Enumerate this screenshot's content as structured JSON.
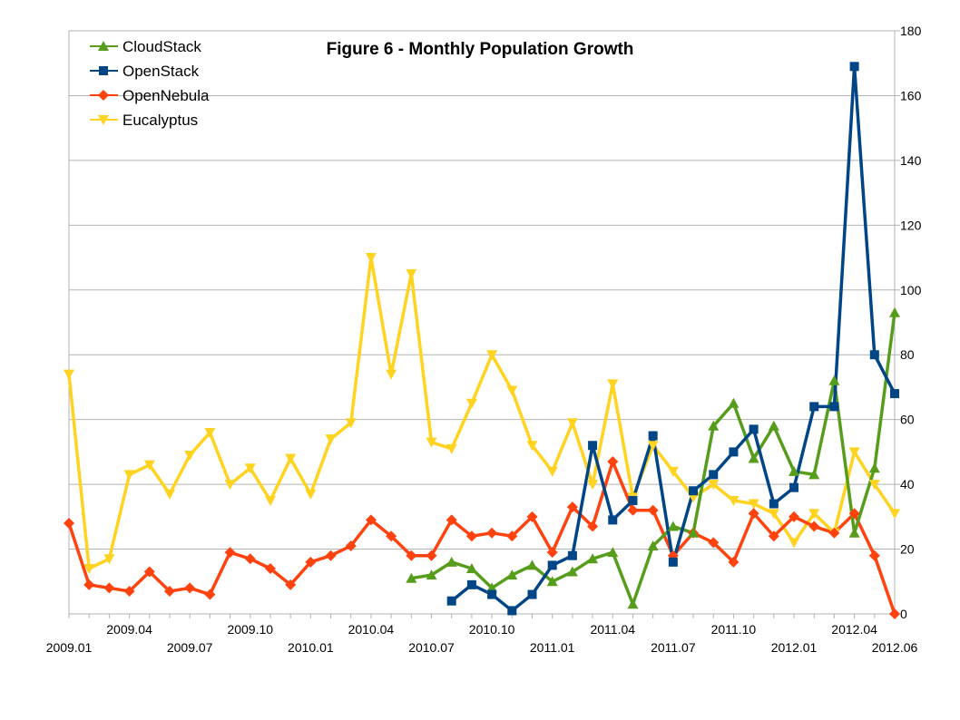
{
  "chart_data": {
    "type": "line",
    "title": "Figure 6 - Monthly Population Growth",
    "xlabel": "",
    "ylabel": "",
    "x_categories": [
      "2009.01",
      "2009.02",
      "2009.03",
      "2009.04",
      "2009.05",
      "2009.06",
      "2009.07",
      "2009.08",
      "2009.09",
      "2009.10",
      "2009.11",
      "2009.12",
      "2010.01",
      "2010.02",
      "2010.03",
      "2010.04",
      "2010.05",
      "2010.06",
      "2010.07",
      "2010.08",
      "2010.09",
      "2010.10",
      "2010.11",
      "2010.12",
      "2011.01",
      "2011.02",
      "2011.03",
      "2011.04",
      "2011.05",
      "2011.06",
      "2011.07",
      "2011.08",
      "2011.09",
      "2011.10",
      "2011.11",
      "2011.12",
      "2012.01",
      "2012.02",
      "2012.03",
      "2012.04",
      "2012.05",
      "2012.06"
    ],
    "x_tick_labels": [
      "2009.01",
      "2009.04",
      "2009.07",
      "2009.10",
      "2010.01",
      "2010.04",
      "2010.07",
      "2010.10",
      "2011.01",
      "2011.04",
      "2011.07",
      "2011.10",
      "2012.01",
      "2012.04",
      "2012.06"
    ],
    "ylim": [
      0,
      180
    ],
    "y_ticks": [
      0,
      20,
      40,
      60,
      80,
      100,
      120,
      140,
      160,
      180
    ],
    "y_axis_side": "right",
    "grid": "horizontal",
    "legend_position": "top-left",
    "series": [
      {
        "name": "CloudStack",
        "color": "#579d1c",
        "marker": "triangle-up",
        "values": [
          null,
          null,
          null,
          null,
          null,
          null,
          null,
          null,
          null,
          null,
          null,
          null,
          null,
          null,
          null,
          null,
          null,
          11,
          12,
          16,
          14,
          8,
          12,
          15,
          10,
          13,
          17,
          19,
          3,
          21,
          27,
          25,
          58,
          65,
          48,
          58,
          44,
          43,
          72,
          25,
          45,
          93
        ]
      },
      {
        "name": "OpenStack",
        "color": "#004586",
        "marker": "square",
        "values": [
          null,
          null,
          null,
          null,
          null,
          null,
          null,
          null,
          null,
          null,
          null,
          null,
          null,
          null,
          null,
          null,
          null,
          null,
          null,
          4,
          9,
          6,
          1,
          6,
          15,
          18,
          52,
          29,
          35,
          55,
          16,
          38,
          43,
          50,
          57,
          34,
          39,
          64,
          64,
          169,
          80,
          68
        ]
      },
      {
        "name": "OpenNebula",
        "color": "#ff420e",
        "marker": "diamond",
        "values": [
          28,
          9,
          8,
          7,
          13,
          7,
          8,
          6,
          19,
          17,
          14,
          9,
          16,
          18,
          21,
          29,
          24,
          18,
          18,
          29,
          24,
          25,
          24,
          30,
          19,
          33,
          27,
          47,
          32,
          32,
          18,
          25,
          22,
          16,
          31,
          24,
          30,
          27,
          25,
          31,
          18,
          0
        ]
      },
      {
        "name": "Eucalyptus",
        "color": "#ffd320",
        "marker": "triangle-down",
        "values": [
          74,
          14,
          17,
          43,
          46,
          37,
          49,
          56,
          40,
          45,
          35,
          48,
          37,
          54,
          59,
          110,
          74,
          105,
          53,
          51,
          65,
          80,
          69,
          52,
          44,
          59,
          40,
          71,
          36,
          52,
          44,
          36,
          40,
          35,
          34,
          31,
          22,
          31,
          25,
          50,
          40,
          31
        ]
      }
    ]
  }
}
